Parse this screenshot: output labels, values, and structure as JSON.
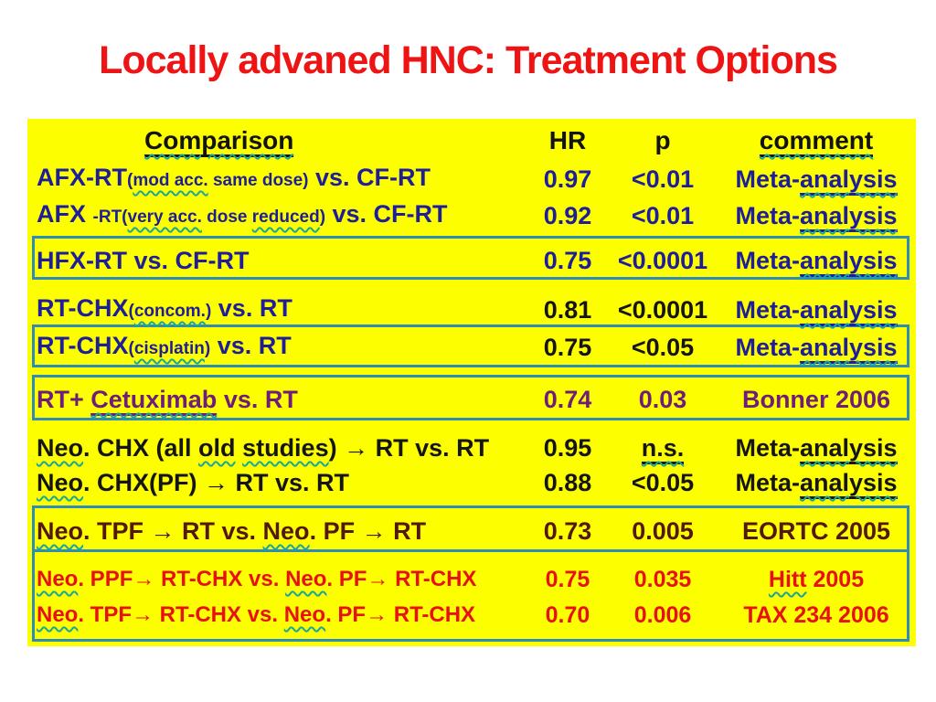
{
  "slide": {
    "title": "Locally advaned HNC: Treatment Options"
  },
  "colors": {
    "title": "#ee1414",
    "background": "#ffffff",
    "table_bg": "#fdff00",
    "box_border": "#2f8cb5",
    "squiggle": "#18a79b",
    "header_text": "#131313",
    "navy": "#1e1e9b",
    "black": "#151515",
    "purple": "#6e1e78",
    "maroon": "#54190e",
    "red": "#e71111"
  },
  "table": {
    "headers": {
      "comparison": "Comparison",
      "hr": "HR",
      "p": "p",
      "comment": "comment"
    },
    "rows": [
      {
        "name": "afx-mod-acc",
        "color": "#1e1e9b",
        "comparison": [
          {
            "t": "AFX-RT"
          },
          {
            "t": "(",
            "c": "sm"
          },
          {
            "t": "mod acc.",
            "c": "sm sq"
          },
          {
            "t": " same dose)",
            "c": "sm"
          },
          {
            "t": " vs. CF-RT"
          }
        ],
        "hr": "0.97",
        "p": [
          {
            "t": "<0.01"
          }
        ],
        "comment": [
          {
            "t": "Meta-"
          },
          {
            "t": "analysis",
            "c": "ul sq"
          }
        ]
      },
      {
        "name": "afx-very-acc",
        "color": "#1e1e9b",
        "comparison": [
          {
            "t": "AFX "
          },
          {
            "t": "-RT(",
            "c": "sm"
          },
          {
            "t": "very acc.",
            "c": "sm sq"
          },
          {
            "t": " dose ",
            "c": "sm"
          },
          {
            "t": "reduced",
            "c": "sm sq"
          },
          {
            "t": ")",
            "c": "sm"
          },
          {
            "t": " vs. CF-RT"
          }
        ],
        "hr": "0.92",
        "p": [
          {
            "t": "<0.01"
          }
        ],
        "comment": [
          {
            "t": "Meta-"
          },
          {
            "t": "analysis",
            "c": "ul sq"
          }
        ]
      },
      {
        "name": "hfx-rt",
        "color": "#1e1e9b",
        "comparison": [
          {
            "t": "HFX-RT vs. CF-RT"
          }
        ],
        "hr": "0.75",
        "p": [
          {
            "t": "<0.0001"
          }
        ],
        "comment": [
          {
            "t": "Meta-"
          },
          {
            "t": "analysis",
            "c": "ul sq"
          }
        ]
      },
      {
        "name": "rt-chx-concom",
        "color": "#1e1e9b",
        "num_color": "#151515",
        "comparison": [
          {
            "t": "RT-CHX"
          },
          {
            "t": "(",
            "c": "sm"
          },
          {
            "t": "concom.",
            "c": "sm sq"
          },
          {
            "t": ")",
            "c": "sm"
          },
          {
            "t": " vs. RT"
          }
        ],
        "hr": "0.81",
        "p": [
          {
            "t": "<0.0001"
          }
        ],
        "comment": [
          {
            "t": "Meta-"
          },
          {
            "t": "analysis",
            "c": "ul sq"
          }
        ]
      },
      {
        "name": "rt-chx-cisplatin",
        "color": "#1e1e9b",
        "num_color": "#151515",
        "comparison": [
          {
            "t": "RT-CHX"
          },
          {
            "t": "(",
            "c": "sm"
          },
          {
            "t": "cisplatin",
            "c": "sm sq"
          },
          {
            "t": ")",
            "c": "sm"
          },
          {
            "t": " vs. RT"
          }
        ],
        "hr": "0.75",
        "p": [
          {
            "t": "<0.05"
          }
        ],
        "comment": [
          {
            "t": "Meta-"
          },
          {
            "t": "analysis",
            "c": "ul sq"
          }
        ]
      },
      {
        "name": "rt-cetuximab",
        "color": "#6e1e78",
        "comparison": [
          {
            "t": "RT+ "
          },
          {
            "t": "Cetuximab",
            "c": "ul sq"
          },
          {
            "t": " vs. RT"
          }
        ],
        "hr": "0.74",
        "p": [
          {
            "t": "0.03"
          }
        ],
        "comment": [
          {
            "t": "Bonner 2006"
          }
        ]
      },
      {
        "name": "neo-chx-all-old",
        "color": "#151515",
        "comparison": [
          {
            "t": "Neo",
            "c": "sq"
          },
          {
            "t": ". CHX (all "
          },
          {
            "t": "old",
            "c": "sq"
          },
          {
            "t": " "
          },
          {
            "t": "studies",
            "c": "sq"
          },
          {
            "t": ") → RT vs. RT"
          }
        ],
        "hr": "0.95",
        "p": [
          {
            "t": "n.s.",
            "c": "ul sq"
          }
        ],
        "comment": [
          {
            "t": "Meta-"
          },
          {
            "t": "analysis",
            "c": "ul sq"
          }
        ]
      },
      {
        "name": "neo-chx-pf",
        "color": "#151515",
        "comparison": [
          {
            "t": "Neo",
            "c": "sq"
          },
          {
            "t": ". CHX(PF) → RT vs. RT"
          }
        ],
        "hr": "0.88",
        "p": [
          {
            "t": "<0.05"
          }
        ],
        "comment": [
          {
            "t": "Meta-"
          },
          {
            "t": "analysis",
            "c": "ul sq"
          }
        ]
      },
      {
        "name": "neo-tpf-rt",
        "color": "#54190e",
        "comparison": [
          {
            "t": "Neo",
            "c": "sq"
          },
          {
            "t": ". TPF → RT vs. "
          },
          {
            "t": "Neo",
            "c": "sq"
          },
          {
            "t": ". PF → RT"
          }
        ],
        "hr": "0.73",
        "p": [
          {
            "t": "0.005"
          }
        ],
        "comment": [
          {
            "t": "EORTC 2005"
          }
        ]
      },
      {
        "name": "neo-ppf-rt-chx",
        "color": "#e71111",
        "comparison": [
          {
            "t": "Neo",
            "c": "sq"
          },
          {
            "t": ". PPF→ RT-CHX vs. "
          },
          {
            "t": "Neo",
            "c": "sq"
          },
          {
            "t": ". PF→ RT-CHX"
          }
        ],
        "hr": "0.75",
        "p": [
          {
            "t": "0.035"
          }
        ],
        "comment": [
          {
            "t": "Hitt",
            "c": "sq"
          },
          {
            "t": " 2005"
          }
        ]
      },
      {
        "name": "neo-tpf-rt-chx",
        "color": "#e71111",
        "comparison": [
          {
            "t": "Neo",
            "c": "sq"
          },
          {
            "t": ". TPF→ RT-CHX vs. "
          },
          {
            "t": "Neo",
            "c": "sq"
          },
          {
            "t": ". PF→ RT-CHX"
          }
        ],
        "hr": "0.70",
        "p": [
          {
            "t": "0.006"
          }
        ],
        "comment": [
          {
            "t": "TAX 234 2006"
          }
        ]
      }
    ]
  }
}
